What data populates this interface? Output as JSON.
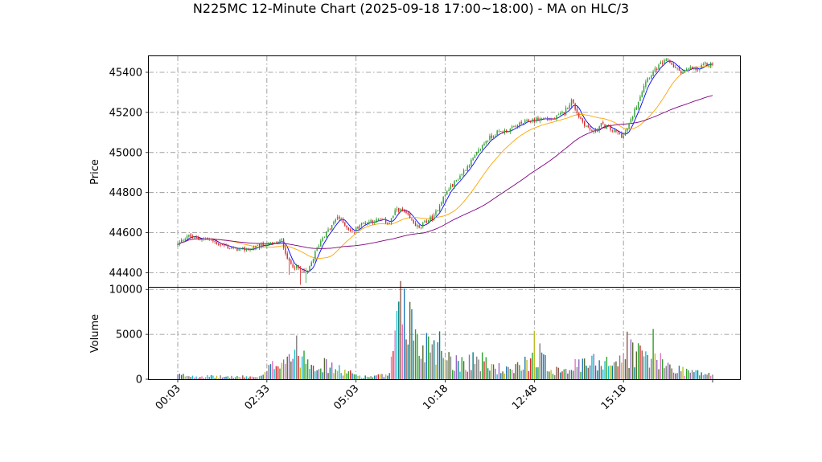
{
  "chart_data": {
    "type": "candlestick",
    "title": "N225MC 12-Minute Chart (2025-09-18 17:00~18:00) - MA on HLC/3",
    "price_panel": {
      "ylabel": "Price",
      "yticks": [
        44400,
        44600,
        44800,
        45000,
        45200,
        45400
      ],
      "ylim": [
        44330,
        45480
      ],
      "up_color": "#2ca02c",
      "down_color": "#d62728"
    },
    "volume_panel": {
      "ylabel": "Volume",
      "yticks": [
        0,
        5000,
        10000
      ],
      "ylim": [
        0,
        10200
      ]
    },
    "xticks": [
      {
        "index": 0,
        "label": "00:03"
      },
      {
        "index": 48,
        "label": "02:33"
      },
      {
        "index": 96,
        "label": "05:03"
      },
      {
        "index": 144,
        "label": "10:18"
      },
      {
        "index": 192,
        "label": "12:48"
      },
      {
        "index": 240,
        "label": "15:18"
      },
      {
        "index": 288,
        "label": ""
      }
    ],
    "grid": true,
    "bar_count": 289,
    "ma_colors": [
      "#0000ff",
      "#ffa500",
      "#800080"
    ],
    "ma_periods": [
      5,
      25,
      75
    ],
    "volume_colors": [
      "#1f77b4",
      "#2ca02c",
      "#d62728",
      "#9467bd",
      "#17becf",
      "#8c564b",
      "#e377c2",
      "#7f7f7f",
      "#bcbd22",
      "#008080",
      "#556b2f"
    ],
    "close_anchors": [
      [
        0,
        44540
      ],
      [
        5,
        44585
      ],
      [
        10,
        44570
      ],
      [
        16,
        44570
      ],
      [
        22,
        44545
      ],
      [
        28,
        44525
      ],
      [
        34,
        44515
      ],
      [
        40,
        44520
      ],
      [
        46,
        44540
      ],
      [
        52,
        44545
      ],
      [
        56,
        44560
      ],
      [
        60,
        44450
      ],
      [
        65,
        44420
      ],
      [
        70,
        44400
      ],
      [
        74,
        44500
      ],
      [
        78,
        44580
      ],
      [
        82,
        44620
      ],
      [
        86,
        44680
      ],
      [
        90,
        44640
      ],
      [
        94,
        44600
      ],
      [
        98,
        44640
      ],
      [
        104,
        44660
      ],
      [
        110,
        44660
      ],
      [
        114,
        44650
      ],
      [
        118,
        44720
      ],
      [
        122,
        44700
      ],
      [
        126,
        44660
      ],
      [
        130,
        44620
      ],
      [
        134,
        44660
      ],
      [
        138,
        44680
      ],
      [
        142,
        44760
      ],
      [
        146,
        44820
      ],
      [
        150,
        44860
      ],
      [
        155,
        44920
      ],
      [
        160,
        44980
      ],
      [
        166,
        45060
      ],
      [
        172,
        45100
      ],
      [
        178,
        45110
      ],
      [
        184,
        45140
      ],
      [
        190,
        45160
      ],
      [
        196,
        45170
      ],
      [
        202,
        45165
      ],
      [
        208,
        45200
      ],
      [
        212,
        45260
      ],
      [
        216,
        45180
      ],
      [
        220,
        45130
      ],
      [
        224,
        45100
      ],
      [
        228,
        45140
      ],
      [
        232,
        45120
      ],
      [
        236,
        45100
      ],
      [
        240,
        45080
      ],
      [
        244,
        45160
      ],
      [
        248,
        45260
      ],
      [
        252,
        45360
      ],
      [
        256,
        45400
      ],
      [
        260,
        45440
      ],
      [
        264,
        45460
      ],
      [
        268,
        45420
      ],
      [
        272,
        45400
      ],
      [
        276,
        45420
      ],
      [
        280,
        45410
      ],
      [
        284,
        45440
      ],
      [
        288,
        45440
      ]
    ],
    "volume_anchors": [
      [
        0,
        500
      ],
      [
        20,
        300
      ],
      [
        45,
        300
      ],
      [
        55,
        2500
      ],
      [
        65,
        3500
      ],
      [
        75,
        2000
      ],
      [
        90,
        900
      ],
      [
        100,
        300
      ],
      [
        114,
        500
      ],
      [
        118,
        6500
      ],
      [
        122,
        9000
      ],
      [
        126,
        6500
      ],
      [
        130,
        3500
      ],
      [
        136,
        5000
      ],
      [
        142,
        4000
      ],
      [
        150,
        2000
      ],
      [
        160,
        2500
      ],
      [
        170,
        1500
      ],
      [
        180,
        900
      ],
      [
        190,
        2500
      ],
      [
        194,
        3500
      ],
      [
        200,
        1200
      ],
      [
        210,
        1500
      ],
      [
        220,
        1800
      ],
      [
        230,
        2500
      ],
      [
        238,
        2000
      ],
      [
        244,
        3500
      ],
      [
        250,
        3000
      ],
      [
        256,
        2500
      ],
      [
        262,
        1800
      ],
      [
        270,
        1200
      ],
      [
        280,
        800
      ],
      [
        288,
        500
      ]
    ]
  }
}
